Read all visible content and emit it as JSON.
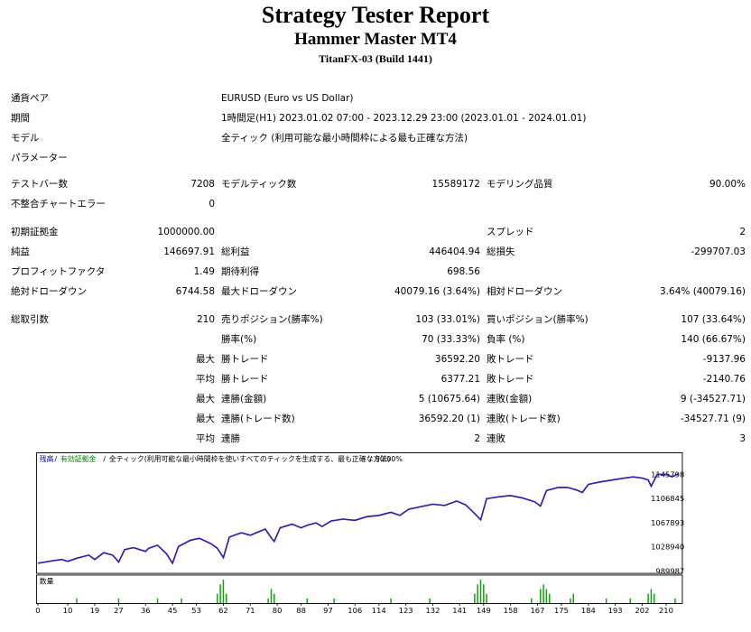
{
  "report": {
    "title": "Strategy Tester Report",
    "ea_name": "Hammer Master MT4",
    "broker": "TitanFX-03 (Build 1441)"
  },
  "settings": [
    {
      "label": "通貨ペア",
      "value": "EURUSD (Euro vs US Dollar)"
    },
    {
      "label": "期間",
      "value": "1時間足(H1) 2023.01.02 07:00 - 2023.12.29 23:00 (2023.01.01 - 2024.01.01)"
    },
    {
      "label": "モデル",
      "value": "全ティック (利用可能な最小時間枠による最も正確な方法)"
    },
    {
      "label": "パラメーター",
      "value": ""
    }
  ],
  "stats": {
    "bars_label": "テストバー数",
    "bars": "7208",
    "ticks_label": "モデルティック数",
    "ticks": "15589172",
    "quality_label": "モデリング品質",
    "quality": "90.00%",
    "mismatch_label": "不整合チャートエラー",
    "mismatch": "0",
    "deposit_label": "初期証拠金",
    "deposit": "1000000.00",
    "spread_label": "スプレッド",
    "spread": "2",
    "net_label": "純益",
    "net": "146697.91",
    "gross_profit_label": "総利益",
    "gross_profit": "446404.94",
    "gross_loss_label": "総損失",
    "gross_loss": "-299707.03",
    "pf_label": "プロフィットファクタ",
    "pf": "1.49",
    "expected_label": "期待利得",
    "expected": "698.56",
    "abs_dd_label": "絶対ドローダウン",
    "abs_dd": "6744.58",
    "max_dd_label": "最大ドローダウン",
    "max_dd": "40079.16 (3.64%)",
    "rel_dd_label": "相対ドローダウン",
    "rel_dd": "3.64% (40079.16)",
    "total_trades_label": "総取引数",
    "total_trades": "210",
    "short_label": "売りポジション(勝率%)",
    "short": "103 (33.01%)",
    "long_label": "買いポジション(勝率%)",
    "long": "107 (33.64%)",
    "win_rate_label": "勝率(%)",
    "win_rate": "70 (33.33%)",
    "loss_rate_label": "負率 (%)",
    "loss_rate": "140 (66.67%)",
    "max_label": "最大",
    "avg_label": "平均",
    "largest_win_label": "勝トレード",
    "largest_win": "36592.20",
    "largest_loss_label": "敗トレード",
    "largest_loss": "-9137.96",
    "avg_win_label": "勝トレード",
    "avg_win": "6377.21",
    "avg_loss_label": "敗トレード",
    "avg_loss": "-2140.76",
    "cons_wins_money_label": "連勝(金額)",
    "cons_wins_money": "5 (10675.64)",
    "cons_losses_money_label": "連敗(金額)",
    "cons_losses_money": "9 (-34527.71)",
    "cons_profit_count_label": "連勝(トレード数)",
    "cons_profit_count": "36592.20 (1)",
    "cons_loss_count_label": "連敗(トレード数)",
    "cons_loss_count": "-34527.71 (9)",
    "avg_cons_wins_label": "連勝",
    "avg_cons_wins": "2",
    "avg_cons_losses_label": "連敗",
    "avg_cons_losses": "3"
  },
  "chart_data": {
    "type": "line",
    "legend": {
      "balance": "残高",
      "equity": "有効証拠金",
      "model": "全ティック(利用可能な最小時間枠を使いすべてのティックを生成する、最も正確な方法)",
      "quality": "90.00%"
    },
    "volume_label": "数量",
    "y_ticks": [
      "1145798",
      "1106845",
      "1067893",
      "1028940",
      "989987"
    ],
    "ylim": [
      989987,
      1160000
    ],
    "x_ticks": [
      "0",
      "10",
      "19",
      "27",
      "36",
      "45",
      "53",
      "62",
      "71",
      "80",
      "88",
      "97",
      "106",
      "114",
      "123",
      "132",
      "141",
      "149",
      "158",
      "167",
      "175",
      "184",
      "193",
      "202",
      "210"
    ],
    "xlim": [
      0,
      215
    ],
    "equity": [
      [
        0,
        1003000
      ],
      [
        5,
        1007000
      ],
      [
        8,
        1009000
      ],
      [
        10,
        1006000
      ],
      [
        13,
        1011000
      ],
      [
        17,
        1016000
      ],
      [
        19,
        1009000
      ],
      [
        22,
        1020000
      ],
      [
        25,
        1016000
      ],
      [
        27,
        1005000
      ],
      [
        29,
        1025000
      ],
      [
        32,
        1028000
      ],
      [
        36,
        1022000
      ],
      [
        37,
        1027000
      ],
      [
        40,
        1032000
      ],
      [
        43,
        1018000
      ],
      [
        45,
        1003000
      ],
      [
        47,
        1030000
      ],
      [
        51,
        1040000
      ],
      [
        54,
        1043000
      ],
      [
        58,
        1034000
      ],
      [
        60,
        1027000
      ],
      [
        62,
        1012000
      ],
      [
        64,
        1045000
      ],
      [
        68,
        1052000
      ],
      [
        71,
        1048000
      ],
      [
        73,
        1052000
      ],
      [
        76,
        1058000
      ],
      [
        78,
        1044000
      ],
      [
        79,
        1038000
      ],
      [
        81,
        1060000
      ],
      [
        85,
        1066000
      ],
      [
        88,
        1060000
      ],
      [
        90,
        1064000
      ],
      [
        93,
        1068000
      ],
      [
        95,
        1062000
      ],
      [
        98,
        1071000
      ],
      [
        102,
        1074000
      ],
      [
        106,
        1072000
      ],
      [
        110,
        1078000
      ],
      [
        114,
        1080000
      ],
      [
        118,
        1085000
      ],
      [
        121,
        1080000
      ],
      [
        124,
        1090000
      ],
      [
        128,
        1094000
      ],
      [
        132,
        1098000
      ],
      [
        136,
        1096000
      ],
      [
        140,
        1103000
      ],
      [
        143,
        1097000
      ],
      [
        146,
        1083000
      ],
      [
        148,
        1073000
      ],
      [
        150,
        1107000
      ],
      [
        154,
        1110000
      ],
      [
        158,
        1112000
      ],
      [
        162,
        1108000
      ],
      [
        166,
        1102000
      ],
      [
        168,
        1095000
      ],
      [
        170,
        1120000
      ],
      [
        174,
        1125000
      ],
      [
        177,
        1125000
      ],
      [
        180,
        1121000
      ],
      [
        182,
        1117000
      ],
      [
        184,
        1130000
      ],
      [
        188,
        1134000
      ],
      [
        192,
        1137000
      ],
      [
        196,
        1140000
      ],
      [
        199,
        1142000
      ],
      [
        202,
        1140000
      ],
      [
        204,
        1137000
      ],
      [
        205,
        1127000
      ],
      [
        207,
        1146000
      ],
      [
        210,
        1146000
      ],
      [
        212,
        1142000
      ],
      [
        214,
        1147000
      ]
    ],
    "volumes": [
      [
        13,
        1
      ],
      [
        27,
        1
      ],
      [
        40,
        1
      ],
      [
        48,
        1
      ],
      [
        60,
        2
      ],
      [
        61,
        4
      ],
      [
        62,
        5
      ],
      [
        63,
        2
      ],
      [
        77,
        1
      ],
      [
        78,
        3
      ],
      [
        79,
        2
      ],
      [
        90,
        1
      ],
      [
        99,
        1
      ],
      [
        118,
        1
      ],
      [
        131,
        1
      ],
      [
        146,
        2
      ],
      [
        147,
        4
      ],
      [
        148,
        5
      ],
      [
        149,
        4
      ],
      [
        150,
        2
      ],
      [
        165,
        1
      ],
      [
        168,
        3
      ],
      [
        169,
        4
      ],
      [
        170,
        3
      ],
      [
        171,
        2
      ],
      [
        178,
        1
      ],
      [
        179,
        2
      ],
      [
        190,
        1
      ],
      [
        198,
        1
      ],
      [
        204,
        2
      ],
      [
        205,
        3
      ],
      [
        206,
        2
      ],
      [
        213,
        1
      ]
    ]
  }
}
